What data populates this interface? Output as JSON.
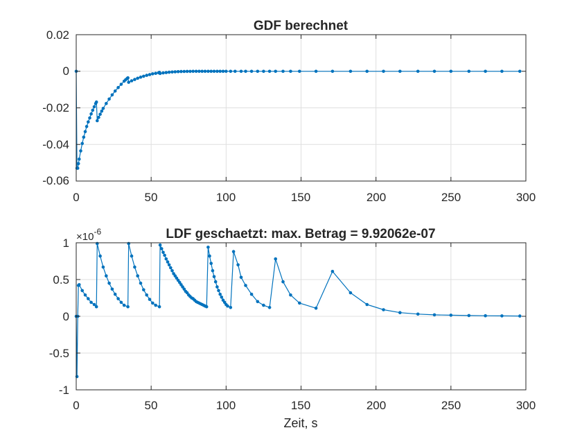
{
  "chart_data": [
    {
      "type": "line",
      "title": "GDF berechnet",
      "xlabel": "",
      "ylabel": "",
      "xlim": [
        0,
        300
      ],
      "ylim": [
        -0.06,
        0.02
      ],
      "xticks": [
        0,
        50,
        100,
        150,
        200,
        250,
        300
      ],
      "yticks": [
        -0.06,
        -0.04,
        -0.02,
        0,
        0.02
      ],
      "xtick_labels": [
        "0",
        "50",
        "100",
        "150",
        "200",
        "250",
        "300"
      ],
      "ytick_labels": [
        "-0.06",
        "-0.04",
        "-0.02",
        "0",
        "0.02"
      ],
      "grid": true,
      "marker": "dot",
      "series_color": "#0072BD",
      "series": [
        {
          "x": [
            0,
            0.5,
            1,
            1.5,
            2,
            3,
            4,
            5,
            6,
            7,
            8,
            9,
            10,
            11,
            12,
            13,
            13.5,
            14,
            15,
            16,
            17,
            18,
            20,
            22,
            24,
            26,
            28,
            30,
            32,
            33,
            34,
            34.5,
            35,
            37,
            39,
            41,
            43,
            45,
            47,
            49,
            51,
            53,
            55,
            55.5,
            56,
            58,
            60,
            62,
            64,
            66,
            68,
            70,
            72,
            74,
            76,
            78,
            80,
            82,
            84,
            86,
            88,
            90,
            92,
            94,
            96,
            98,
            100,
            103,
            106,
            110,
            113,
            117,
            121,
            125,
            129,
            133,
            138,
            143,
            149,
            160,
            171,
            183,
            194,
            205,
            216,
            228,
            239,
            250,
            262,
            273,
            284,
            296
          ],
          "y": [
            0,
            -0.053,
            -0.053,
            -0.0505,
            -0.048,
            -0.0435,
            -0.0395,
            -0.036,
            -0.033,
            -0.0302,
            -0.0277,
            -0.0255,
            -0.0233,
            -0.0213,
            -0.0194,
            -0.0176,
            -0.0168,
            -0.027,
            -0.0252,
            -0.0235,
            -0.0218,
            -0.0203,
            -0.0176,
            -0.0152,
            -0.0129,
            -0.0108,
            -0.0089,
            -0.0071,
            -0.0054,
            -0.0046,
            -0.0039,
            -0.0036,
            -0.006,
            -0.0052,
            -0.0045,
            -0.0038,
            -0.0032,
            -0.0027,
            -0.0022,
            -0.0018,
            -0.0014,
            -0.0011,
            -0.0008,
            -0.0006,
            -0.0012,
            -0.0009,
            -0.0007,
            -0.0005,
            -0.0004,
            -0.0003,
            -0.0002,
            -0.00015,
            -0.0001,
            -7e-05,
            -4e-05,
            -2e-05,
            0,
            0,
            0,
            0,
            0,
            0,
            0,
            0,
            0,
            0,
            0,
            0,
            0,
            0,
            0,
            0,
            0,
            0,
            0,
            0,
            0,
            0,
            0,
            0,
            0,
            0,
            0,
            0,
            0,
            0,
            0,
            0,
            0,
            0,
            0,
            0
          ]
        }
      ]
    },
    {
      "type": "line",
      "title": "LDF geschaetzt: max. Betrag = 9.92062e-07",
      "xlabel": "Zeit, s",
      "ylabel": "",
      "exponent_base": "×10",
      "exponent_power": "-6",
      "xlim": [
        0,
        300
      ],
      "ylim": [
        -1,
        1
      ],
      "xticks": [
        0,
        50,
        100,
        150,
        200,
        250,
        300
      ],
      "yticks": [
        -1,
        -0.5,
        0,
        0.5,
        1
      ],
      "xtick_labels": [
        "0",
        "50",
        "100",
        "150",
        "200",
        "250",
        "300"
      ],
      "ytick_labels": [
        "-1",
        "-0.5",
        "0",
        "0.5",
        "1"
      ],
      "grid": true,
      "marker": "dot",
      "series_color": "#0072BD",
      "series": [
        {
          "x": [
            0,
            0.5,
            1,
            1.5,
            2,
            4,
            6,
            8,
            10,
            12,
            13.5,
            14,
            16,
            18,
            20,
            22,
            24,
            26,
            28,
            30,
            32,
            34.5,
            35,
            37,
            39,
            41,
            43,
            45,
            47,
            49,
            51,
            53,
            55.5,
            56,
            57,
            58,
            59,
            60,
            61,
            62,
            63,
            64,
            65,
            66,
            67,
            68,
            69,
            70,
            71,
            72,
            73,
            74,
            75,
            76,
            77,
            78,
            79,
            80,
            81,
            82,
            83,
            84,
            85,
            86,
            87,
            88,
            89,
            90,
            91,
            92,
            93,
            94,
            95,
            96,
            97,
            98,
            99,
            100,
            101,
            103,
            105,
            108,
            110,
            113,
            117,
            121,
            125,
            129,
            133,
            138,
            143,
            149,
            160,
            171,
            183,
            194,
            205,
            216,
            228,
            239,
            250,
            262,
            273,
            284,
            296
          ],
          "y": [
            0,
            -0.82,
            0,
            0.42,
            0.43,
            0.35,
            0.29,
            0.24,
            0.19,
            0.16,
            0.13,
            0.99,
            0.82,
            0.67,
            0.55,
            0.45,
            0.37,
            0.3,
            0.24,
            0.19,
            0.15,
            0.13,
            0.99,
            0.82,
            0.67,
            0.55,
            0.45,
            0.36,
            0.29,
            0.23,
            0.18,
            0.15,
            0.13,
            0.97,
            0.92,
            0.87,
            0.83,
            0.78,
            0.74,
            0.7,
            0.66,
            0.62,
            0.58,
            0.55,
            0.52,
            0.49,
            0.46,
            0.43,
            0.4,
            0.37,
            0.34,
            0.32,
            0.29,
            0.27,
            0.25,
            0.24,
            0.22,
            0.2,
            0.19,
            0.18,
            0.17,
            0.16,
            0.15,
            0.14,
            0.13,
            0.94,
            0.82,
            0.72,
            0.62,
            0.54,
            0.47,
            0.4,
            0.35,
            0.3,
            0.26,
            0.22,
            0.19,
            0.16,
            0.14,
            0.12,
            0.88,
            0.7,
            0.53,
            0.42,
            0.3,
            0.2,
            0.15,
            0.12,
            0.78,
            0.47,
            0.29,
            0.18,
            0.11,
            0.61,
            0.32,
            0.16,
            0.09,
            0.05,
            0.03,
            0.02,
            0.015,
            0.01,
            0.008,
            0.006,
            0.004
          ]
        }
      ]
    }
  ]
}
